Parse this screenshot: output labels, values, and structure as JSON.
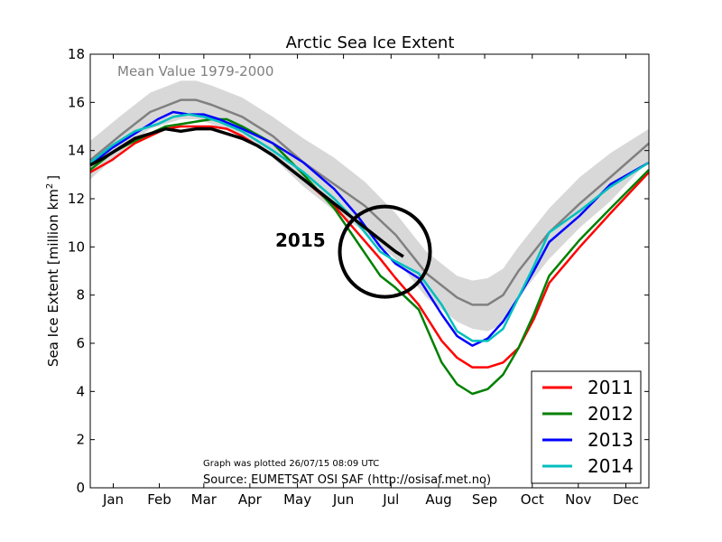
{
  "chart_data": {
    "type": "line",
    "title": "Arctic Sea Ice Extent",
    "ylabel": "Sea Ice Extent [million km",
    "ylabel_sup": "2",
    "ylabel_end": "]",
    "xlabel": "",
    "ylim": [
      0,
      18
    ],
    "xlim": [
      1,
      365
    ],
    "grid": false,
    "legend_position": "lower-right",
    "yticks": [
      0,
      2,
      4,
      6,
      8,
      10,
      12,
      14,
      16,
      18
    ],
    "months": [
      {
        "label": "Jan",
        "day": 16
      },
      {
        "label": "Feb",
        "day": 46
      },
      {
        "label": "Mar",
        "day": 75
      },
      {
        "label": "Apr",
        "day": 105
      },
      {
        "label": "May",
        "day": 136
      },
      {
        "label": "Jun",
        "day": 166
      },
      {
        "label": "Jul",
        "day": 197
      },
      {
        "label": "Aug",
        "day": 228
      },
      {
        "label": "Sep",
        "day": 258
      },
      {
        "label": "Oct",
        "day": 289
      },
      {
        "label": "Nov",
        "day": 319
      },
      {
        "label": "Dec",
        "day": 350
      }
    ],
    "mean_label": "Mean Value 1979-2000",
    "mean": {
      "color": "#808080",
      "x": [
        1,
        20,
        40,
        60,
        70,
        80,
        100,
        120,
        140,
        160,
        180,
        200,
        220,
        240,
        250,
        260,
        270,
        280,
        300,
        320,
        340,
        365
      ],
      "y": [
        13.6,
        14.6,
        15.6,
        16.1,
        16.1,
        15.9,
        15.4,
        14.6,
        13.5,
        12.6,
        11.7,
        10.5,
        8.9,
        7.9,
        7.6,
        7.6,
        8.0,
        9.0,
        10.6,
        11.8,
        12.9,
        14.3
      ]
    },
    "band": {
      "color": "#d8d8d8",
      "x": [
        1,
        20,
        40,
        60,
        70,
        80,
        100,
        120,
        140,
        160,
        180,
        200,
        220,
        240,
        250,
        260,
        270,
        280,
        300,
        320,
        340,
        365
      ],
      "upper": [
        14.4,
        15.4,
        16.4,
        16.9,
        16.9,
        16.7,
        16.2,
        15.4,
        14.5,
        13.7,
        12.7,
        11.4,
        9.8,
        8.8,
        8.6,
        8.7,
        9.1,
        10.0,
        11.6,
        12.9,
        13.9,
        14.9
      ],
      "lower": [
        12.8,
        13.9,
        14.9,
        15.3,
        15.3,
        15.1,
        14.6,
        13.7,
        12.5,
        11.5,
        10.6,
        9.5,
        7.9,
        6.9,
        6.6,
        6.5,
        6.8,
        7.9,
        9.5,
        10.8,
        11.9,
        13.6
      ]
    },
    "series": [
      {
        "name": "2011",
        "color": "#ff0000",
        "x": [
          1,
          15,
          30,
          50,
          60,
          70,
          80,
          90,
          100,
          120,
          140,
          160,
          175,
          190,
          200,
          215,
          230,
          240,
          250,
          260,
          270,
          280,
          290,
          300,
          320,
          340,
          365
        ],
        "y": [
          13.1,
          13.6,
          14.3,
          14.9,
          15.0,
          15.0,
          15.0,
          14.9,
          14.6,
          13.8,
          12.8,
          11.7,
          10.6,
          9.5,
          8.7,
          7.6,
          6.1,
          5.4,
          5.0,
          5.0,
          5.2,
          5.8,
          7.0,
          8.5,
          10.0,
          11.4,
          13.1
        ]
      },
      {
        "name": "2012",
        "color": "#008000",
        "x": [
          1,
          15,
          30,
          50,
          60,
          70,
          80,
          90,
          100,
          120,
          140,
          160,
          175,
          190,
          200,
          215,
          230,
          240,
          250,
          260,
          270,
          280,
          290,
          300,
          320,
          340,
          365
        ],
        "y": [
          13.2,
          13.9,
          14.4,
          15.0,
          15.1,
          15.2,
          15.3,
          15.3,
          15.0,
          14.3,
          13.0,
          11.6,
          10.2,
          8.8,
          8.3,
          7.4,
          5.2,
          4.3,
          3.9,
          4.1,
          4.7,
          5.8,
          7.2,
          8.8,
          10.3,
          11.6,
          13.2
        ]
      },
      {
        "name": "2013",
        "color": "#0000ff",
        "x": [
          1,
          15,
          30,
          45,
          55,
          65,
          75,
          85,
          100,
          120,
          140,
          160,
          175,
          190,
          200,
          215,
          230,
          240,
          250,
          260,
          270,
          280,
          290,
          300,
          320,
          340,
          365
        ],
        "y": [
          13.4,
          14.1,
          14.7,
          15.3,
          15.6,
          15.5,
          15.5,
          15.3,
          14.9,
          14.3,
          13.5,
          12.4,
          11.3,
          10.0,
          9.3,
          8.7,
          7.2,
          6.3,
          5.9,
          6.2,
          6.9,
          7.9,
          9.0,
          10.2,
          11.3,
          12.6,
          13.5
        ]
      },
      {
        "name": "2014",
        "color": "#00bfbf",
        "x": [
          1,
          15,
          30,
          45,
          55,
          65,
          75,
          85,
          100,
          120,
          140,
          160,
          175,
          190,
          200,
          215,
          230,
          240,
          250,
          260,
          270,
          280,
          290,
          300,
          320,
          340,
          365
        ],
        "y": [
          13.5,
          14.2,
          14.8,
          15.1,
          15.4,
          15.5,
          15.4,
          15.2,
          14.8,
          14.0,
          13.1,
          12.0,
          11.0,
          9.8,
          9.4,
          8.9,
          7.6,
          6.5,
          6.1,
          6.1,
          6.6,
          7.9,
          9.2,
          10.6,
          11.5,
          12.5,
          13.5
        ]
      }
    ],
    "current": {
      "name": "2015",
      "color": "#000000",
      "x": [
        1,
        10,
        20,
        30,
        40,
        50,
        60,
        70,
        80,
        90,
        100,
        110,
        120,
        130,
        140,
        150,
        160,
        170,
        180,
        190,
        200,
        205
      ],
      "y": [
        13.4,
        13.7,
        14.1,
        14.5,
        14.7,
        14.9,
        14.8,
        14.9,
        14.9,
        14.7,
        14.5,
        14.2,
        13.8,
        13.3,
        12.8,
        12.3,
        11.8,
        11.3,
        10.8,
        10.3,
        9.8,
        9.6
      ]
    },
    "annotations": {
      "current_year_label": "2015",
      "plotted_note": "Graph was plotted 26/07/15 08:09 UTC",
      "source_note": "Source: EUMETSAT OSI SAF (http://osisaf.met.no)",
      "circle": {
        "center_day": 193,
        "center_value": 9.8,
        "color": "#000000"
      }
    }
  }
}
